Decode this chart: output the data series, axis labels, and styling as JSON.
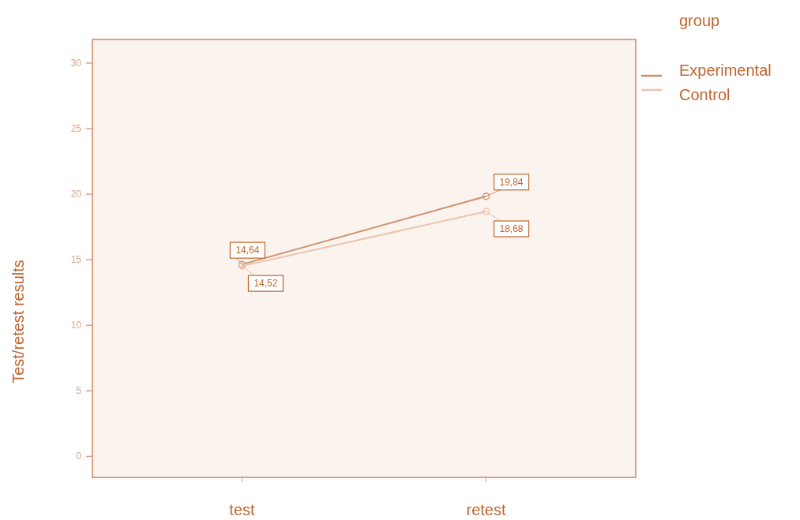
{
  "chart_data": {
    "type": "line",
    "categories": [
      "test",
      "retest"
    ],
    "ylabel": "Test/retest results",
    "legend_title": "group",
    "legend": "top right",
    "marker": "circle",
    "grid": false,
    "ylim": [
      -1.6,
      31.8
    ],
    "yticks": [
      0,
      5,
      10,
      15,
      20,
      25,
      30
    ],
    "series": [
      {
        "name": "Experimental",
        "color": "#cf8f6a",
        "values": [
          14.64,
          19.84
        ],
        "value_labels": [
          "14,64",
          "19,84"
        ]
      },
      {
        "name": "Control",
        "color": "#eec3ad",
        "values": [
          14.52,
          18.68
        ],
        "value_labels": [
          "14,52",
          "18,68"
        ]
      }
    ]
  }
}
